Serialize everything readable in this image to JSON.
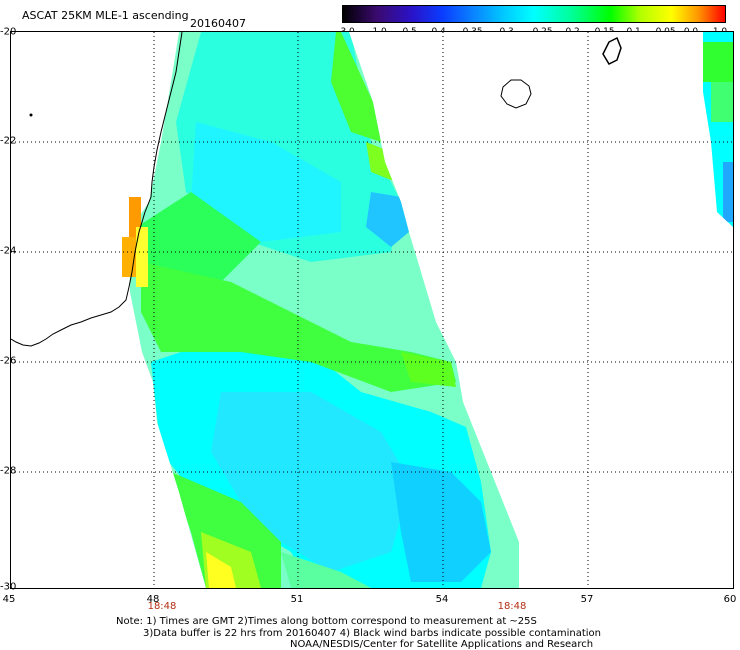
{
  "header": {
    "title": "ASCAT 25KM MLE-1 ascending",
    "date": "20160407"
  },
  "colorbar": {
    "ticks": [
      "-3.0",
      "-1.0",
      "-0.5",
      "-0.4",
      "-0.35",
      "-0.3",
      "-0.25",
      "-0.2",
      "-0.15",
      "-0.1",
      "-0.05",
      "0.0",
      "1.0"
    ],
    "colors": [
      "#000000",
      "#3b0a70",
      "#2a12c8",
      "#0a3cff",
      "#0a82ff",
      "#00c8ff",
      "#00ffff",
      "#00ff96",
      "#00ff00",
      "#b4ff00",
      "#ffff00",
      "#ff9600",
      "#ff0000"
    ]
  },
  "map": {
    "lat_labels": [
      "-20",
      "-22",
      "-24",
      "-26",
      "-28",
      "-30"
    ],
    "lon_labels": [
      "45",
      "48",
      "51",
      "54",
      "57",
      "60"
    ],
    "time_labels": [
      "18:48",
      "18:48"
    ]
  },
  "notes": {
    "line1": "Note: 1) Times are GMT 2)Times along bottom correspond to measurement at ~25S",
    "line2": "3)Data buffer is 22 hrs from 20160407 4) Black wind barbs indicate possible contamination",
    "line3": "NOAA/NESDIS/Center for Satellite Applications and Research"
  }
}
